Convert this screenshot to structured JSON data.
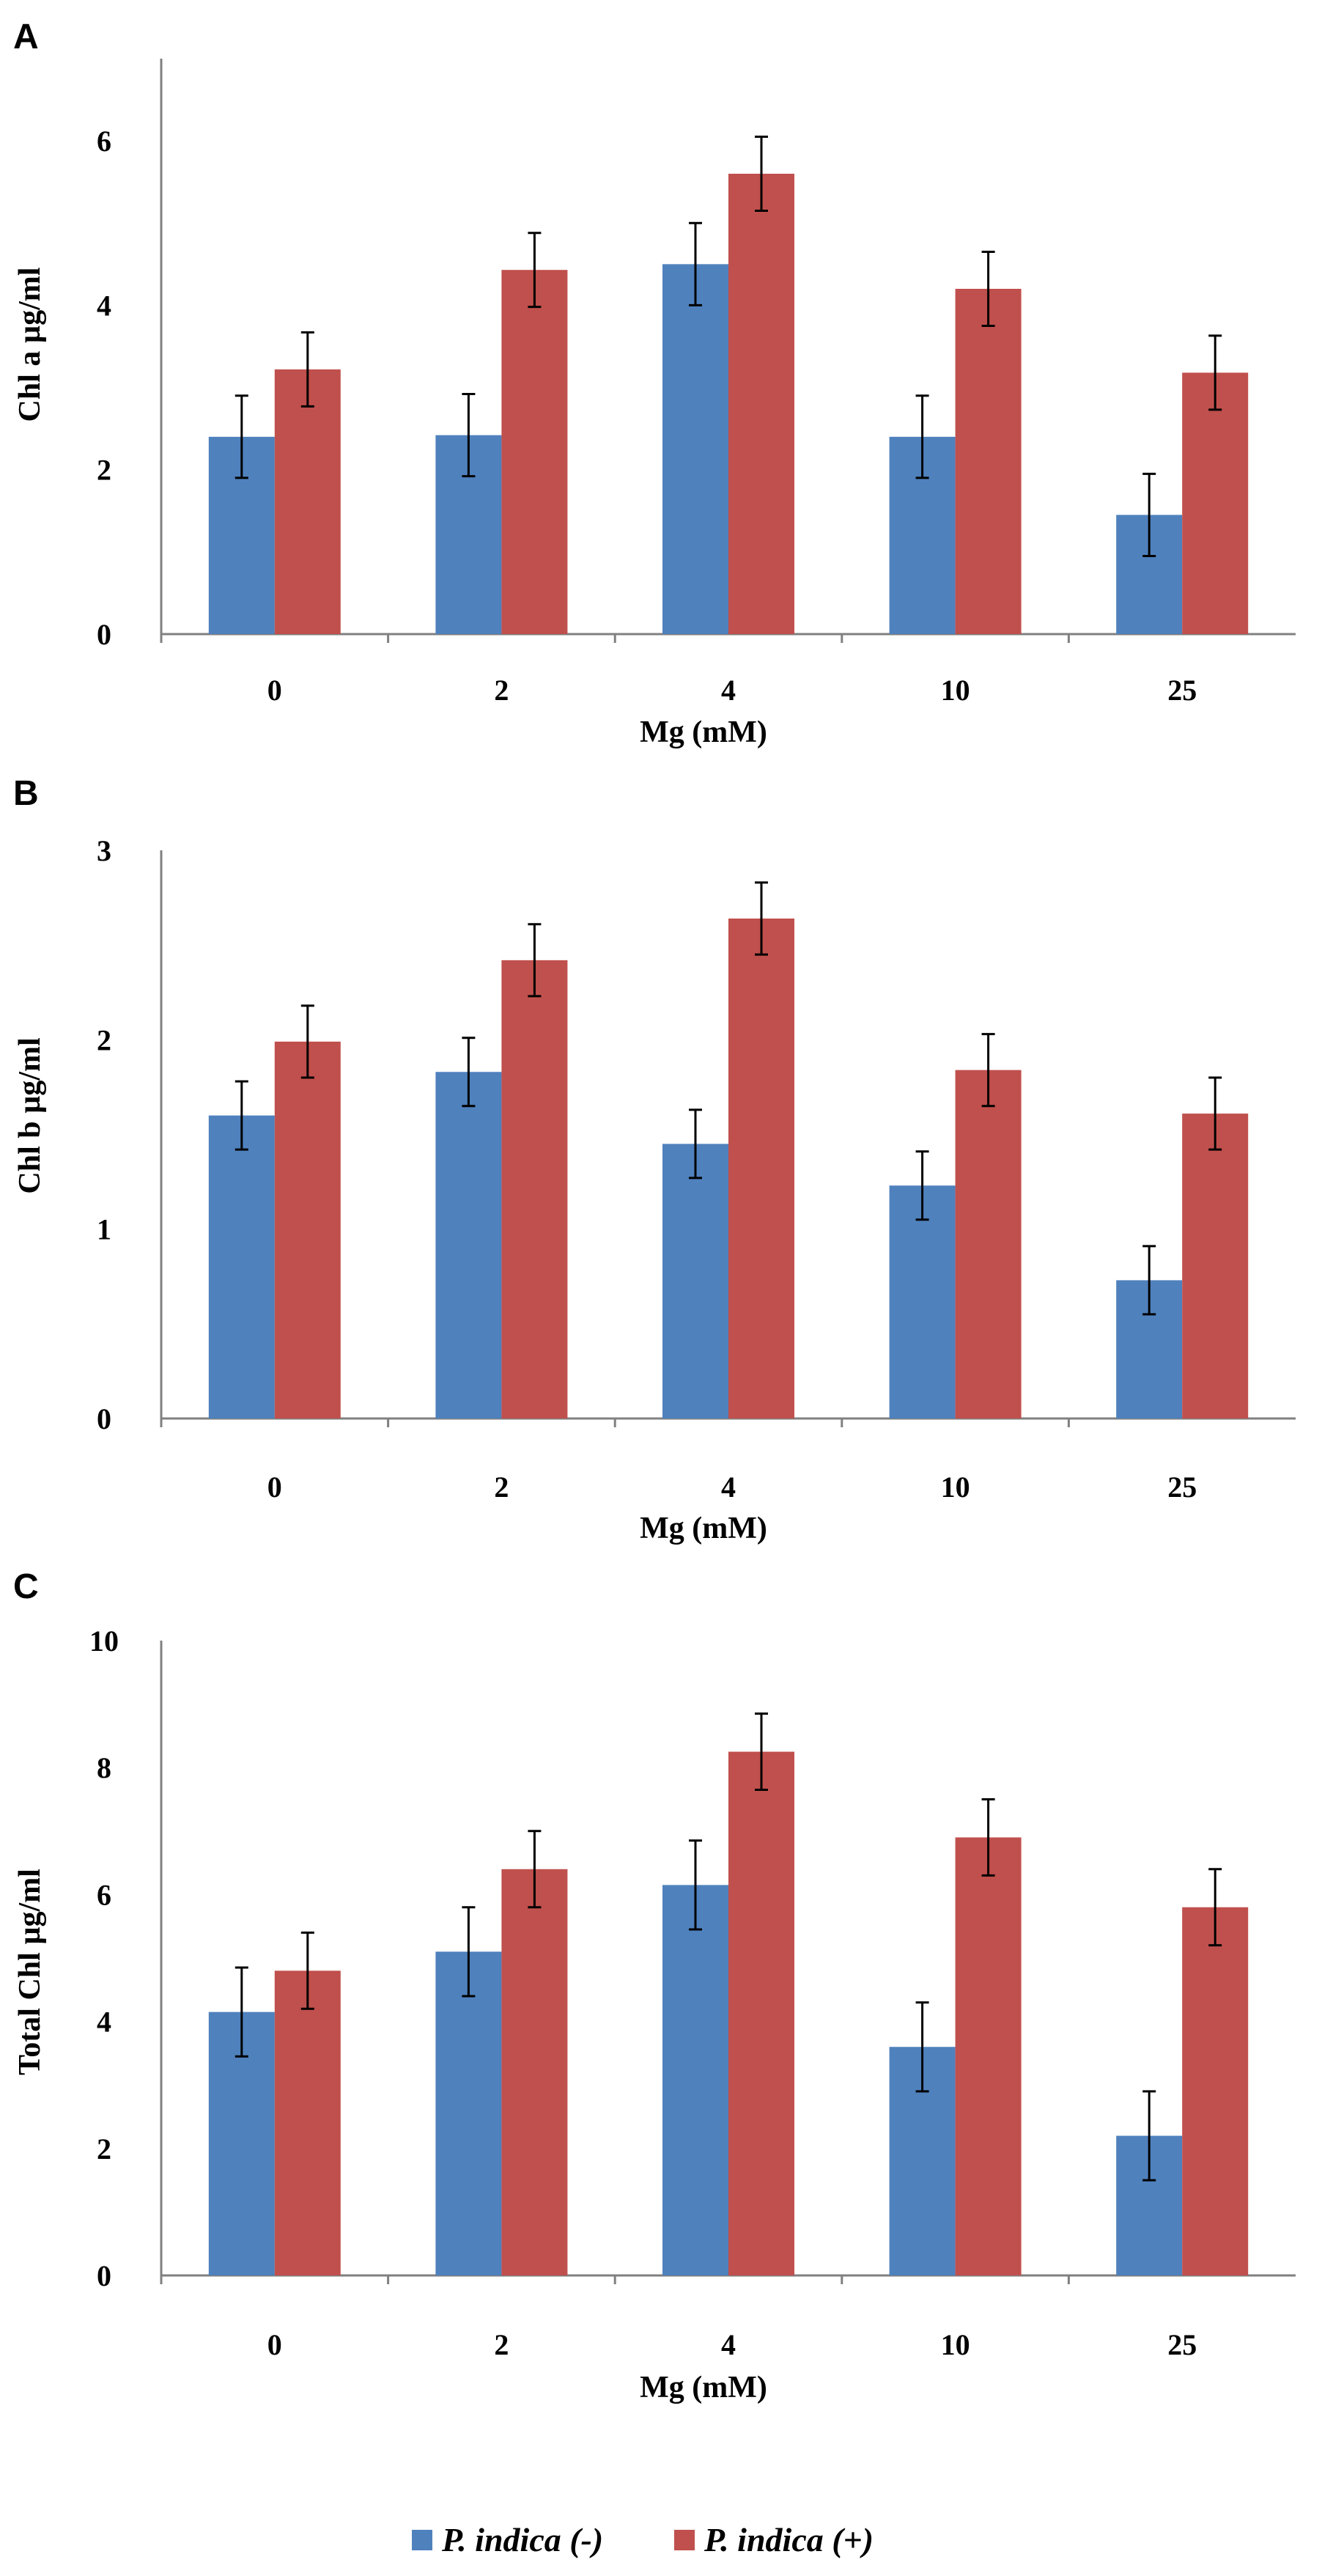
{
  "chart_data": [
    {
      "panel_label": "A",
      "type": "bar",
      "xlabel": "Mg (mM)",
      "ylabel": "Chl a µg/ml",
      "categories": [
        "0",
        "2",
        "4",
        "10",
        "25"
      ],
      "ylim": [
        0,
        7
      ],
      "yticks": [
        "0",
        "2",
        "4",
        "6"
      ],
      "series": [
        {
          "name": "P. indica (-)",
          "values": [
            2.4,
            2.42,
            4.5,
            2.4,
            1.45
          ],
          "errors": [
            0.5,
            0.5,
            0.5,
            0.5,
            0.5
          ]
        },
        {
          "name": "P. indica (+)",
          "values": [
            3.22,
            4.43,
            5.6,
            4.2,
            3.18
          ],
          "errors": [
            0.45,
            0.45,
            0.45,
            0.45,
            0.45
          ]
        }
      ]
    },
    {
      "panel_label": "B",
      "type": "bar",
      "xlabel": "Mg (mM)",
      "ylabel": "Chl b µg/ml",
      "categories": [
        "0",
        "2",
        "4",
        "10",
        "25"
      ],
      "ylim": [
        0,
        3
      ],
      "yticks": [
        "0",
        "1",
        "2",
        "3"
      ],
      "series": [
        {
          "name": "P. indica (-)",
          "values": [
            1.6,
            1.83,
            1.45,
            1.23,
            0.73
          ],
          "errors": [
            0.18,
            0.18,
            0.18,
            0.18,
            0.18
          ]
        },
        {
          "name": "P. indica (+)",
          "values": [
            1.99,
            2.42,
            2.64,
            1.84,
            1.61
          ],
          "errors": [
            0.19,
            0.19,
            0.19,
            0.19,
            0.19
          ]
        }
      ]
    },
    {
      "panel_label": "C",
      "type": "bar",
      "xlabel": "Mg (mM)",
      "ylabel": "Total Chl µg/ml",
      "categories": [
        "0",
        "2",
        "4",
        "10",
        "25"
      ],
      "ylim": [
        0,
        10
      ],
      "yticks": [
        "0",
        "2",
        "4",
        "6",
        "8",
        "10"
      ],
      "series": [
        {
          "name": "P. indica (-)",
          "values": [
            4.15,
            5.1,
            6.15,
            3.6,
            2.2
          ],
          "errors": [
            0.7,
            0.7,
            0.7,
            0.7,
            0.7
          ]
        },
        {
          "name": "P. indica (+)",
          "values": [
            4.8,
            6.4,
            8.25,
            6.9,
            5.8
          ],
          "errors": [
            0.6,
            0.6,
            0.6,
            0.6,
            0.6
          ]
        }
      ]
    }
  ],
  "legend": {
    "items": [
      {
        "label": "P. indica (-)",
        "color": "#4f81bd"
      },
      {
        "label": "P. indica (+)",
        "color": "#c0504d"
      }
    ]
  },
  "colors": {
    "series_minus": "#4f81bd",
    "series_plus": "#c0504d",
    "axis": "#808080",
    "error_bar": "#000000"
  }
}
